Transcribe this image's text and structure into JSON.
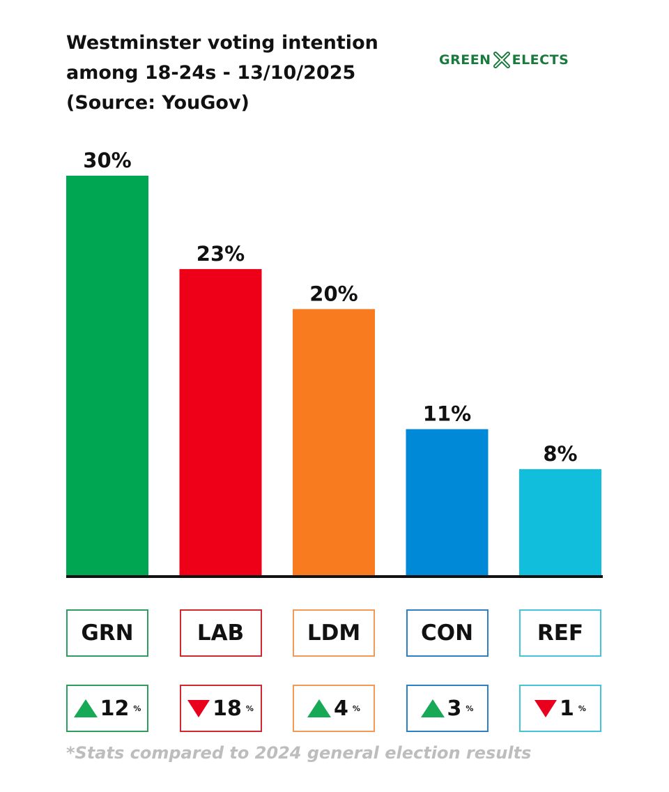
{
  "title_lines": [
    "Westminster voting intention",
    "among 18-24s - 13/10/2025",
    "(Source: YouGov)"
  ],
  "logo": {
    "left_text": "GREEN",
    "right_text": "ELECTS",
    "color": "#1a7a3e",
    "icon": "cross-x-icon"
  },
  "chart_data": {
    "type": "bar",
    "title": "Westminster voting intention among 18-24s - 13/10/2025 (Source: YouGov)",
    "categories": [
      "GRN",
      "LAB",
      "LDM",
      "CON",
      "REF"
    ],
    "values": [
      30,
      23,
      20,
      11,
      8
    ],
    "value_labels": [
      "30%",
      "23%",
      "20%",
      "11%",
      "8%"
    ],
    "colors": [
      "#00a651",
      "#ee0019",
      "#f97b1f",
      "#0089d6",
      "#11bfdc"
    ],
    "border_colors": [
      "#2e9e5e",
      "#d4262f",
      "#f29a55",
      "#2f7fc4",
      "#45c3da"
    ],
    "ylim": [
      0,
      30
    ],
    "grid": false,
    "legend": "none"
  },
  "changes": [
    {
      "direction": "up",
      "value": "12",
      "unit": "%"
    },
    {
      "direction": "down",
      "value": "18",
      "unit": "%"
    },
    {
      "direction": "up",
      "value": "4",
      "unit": "%"
    },
    {
      "direction": "up",
      "value": "3",
      "unit": "%"
    },
    {
      "direction": "down",
      "value": "1",
      "unit": "%"
    }
  ],
  "footnote": "*Stats compared to 2024 general election results"
}
